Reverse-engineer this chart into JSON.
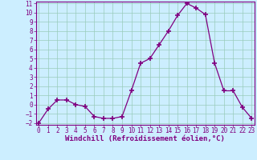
{
  "x": [
    0,
    1,
    2,
    3,
    4,
    5,
    6,
    7,
    8,
    9,
    10,
    11,
    12,
    13,
    14,
    15,
    16,
    17,
    18,
    19,
    20,
    21,
    22,
    23
  ],
  "y": [
    -2.0,
    -0.5,
    0.5,
    0.5,
    0.0,
    -0.2,
    -1.3,
    -1.5,
    -1.5,
    -1.3,
    1.5,
    4.5,
    5.0,
    6.5,
    8.0,
    9.7,
    11.0,
    10.5,
    9.8,
    4.5,
    1.5,
    1.5,
    -0.3,
    -1.5
  ],
  "line_color": "#800080",
  "marker": "+",
  "marker_size": 4,
  "marker_lw": 1.2,
  "bg_color": "#cceeff",
  "grid_color": "#99ccbb",
  "xlabel": "Windchill (Refroidissement éolien,°C)",
  "ylim": [
    -2,
    11
  ],
  "xlim": [
    -0.3,
    23.3
  ],
  "yticks": [
    -2,
    -1,
    0,
    1,
    2,
    3,
    4,
    5,
    6,
    7,
    8,
    9,
    10,
    11
  ],
  "xticks": [
    0,
    1,
    2,
    3,
    4,
    5,
    6,
    7,
    8,
    9,
    10,
    11,
    12,
    13,
    14,
    15,
    16,
    17,
    18,
    19,
    20,
    21,
    22,
    23
  ],
  "tick_fontsize": 5.5,
  "xlabel_fontsize": 6.5,
  "spine_color": "#800080",
  "linewidth": 0.9
}
